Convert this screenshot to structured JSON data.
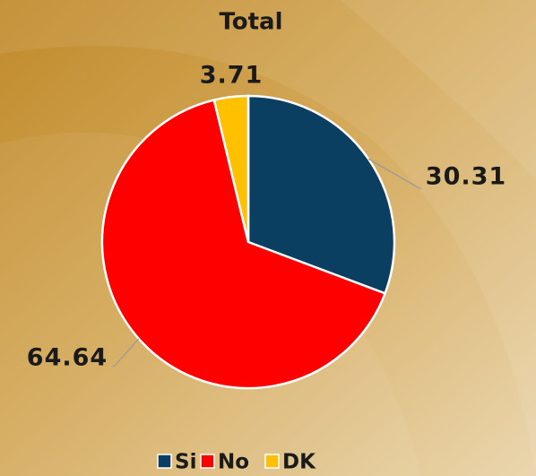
{
  "chart_data": {
    "type": "pie",
    "title": "Total",
    "categories": [
      "Si",
      "No",
      "DK"
    ],
    "values": [
      30.31,
      64.64,
      3.71
    ],
    "colors": [
      "#0b3f61",
      "#ff0000",
      "#ffc000"
    ],
    "legend": "bottom"
  }
}
